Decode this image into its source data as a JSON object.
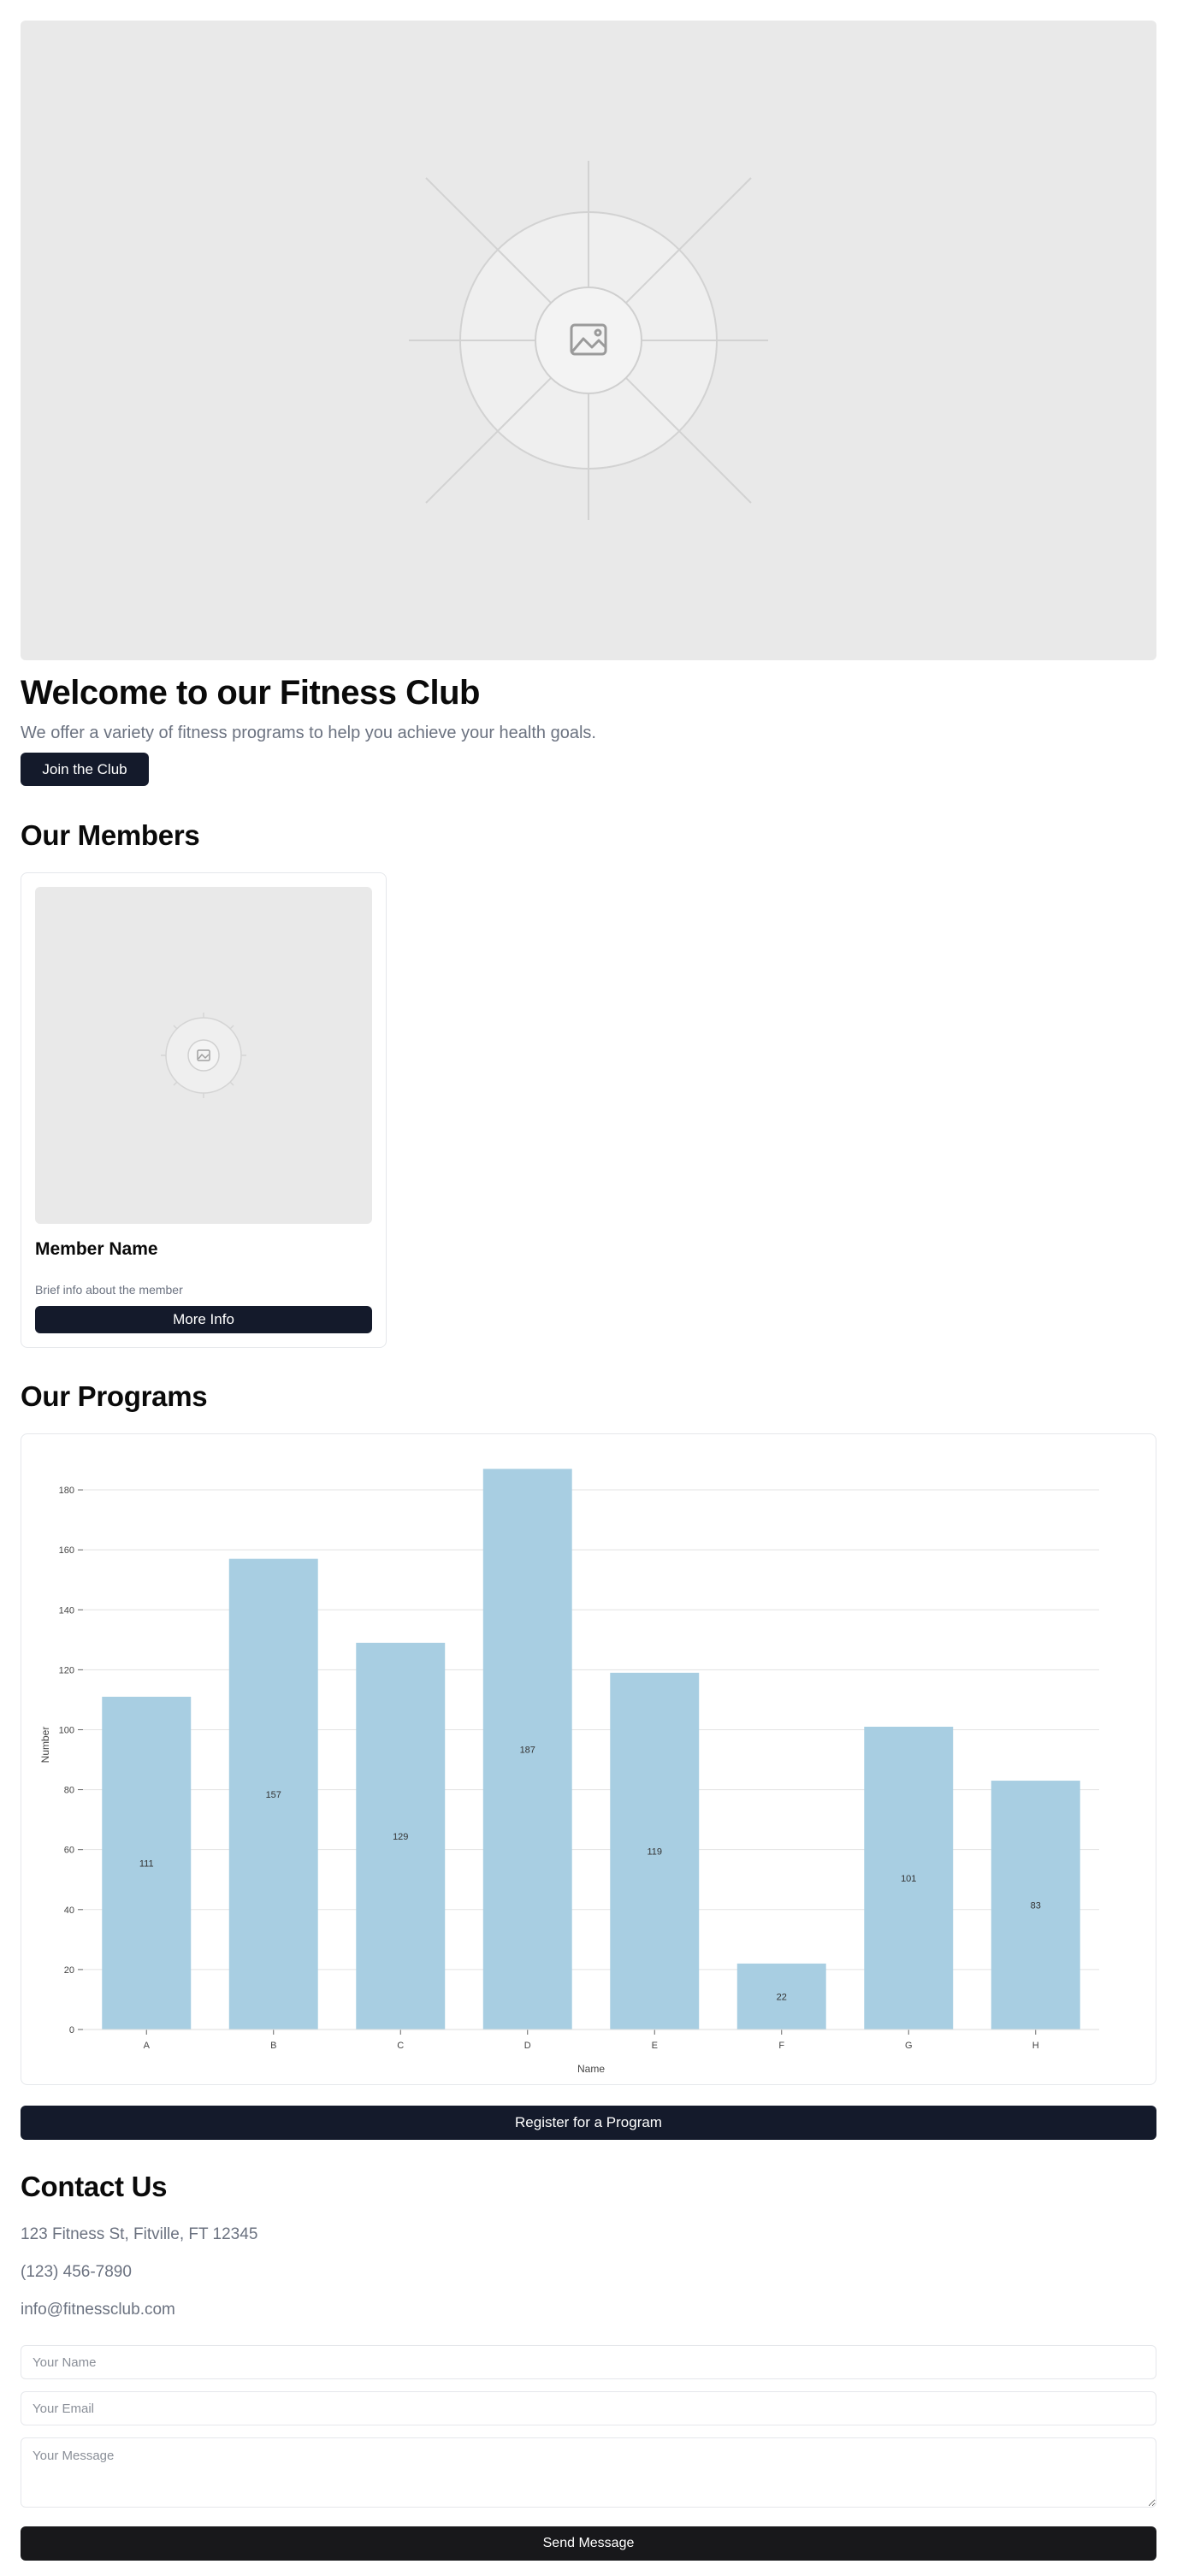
{
  "hero": {
    "image_icon": "image-placeholder-icon",
    "title": "Welcome to our Fitness Club",
    "subtitle": "We offer a variety of fitness programs to help you achieve your health goals.",
    "cta_label": "Join the Club"
  },
  "members": {
    "heading": "Our Members",
    "cards": [
      {
        "image_icon": "image-placeholder-icon",
        "name": "Member Name",
        "info": "Brief info about the member",
        "button_label": "More Info"
      }
    ]
  },
  "programs": {
    "heading": "Our Programs",
    "register_label": "Register for a Program"
  },
  "chart_data": {
    "type": "bar",
    "categories": [
      "A",
      "B",
      "C",
      "D",
      "E",
      "F",
      "G",
      "H"
    ],
    "values": [
      111,
      157,
      129,
      187,
      119,
      22,
      101,
      83
    ],
    "xlabel": "Name",
    "ylabel": "Number",
    "ylim": [
      0,
      190
    ],
    "yticks": [
      0,
      20,
      40,
      60,
      80,
      100,
      120,
      140,
      160,
      180
    ],
    "grid": true,
    "data_labels": true,
    "bar_color": "#a8cee2"
  },
  "contact": {
    "heading": "Contact Us",
    "address": "123 Fitness St, Fitville, FT 12345",
    "phone": "(123) 456-7890",
    "email": "info@fitnessclub.com",
    "form": {
      "name_placeholder": "Your Name",
      "email_placeholder": "Your Email",
      "message_placeholder": "Your Message",
      "submit_label": "Send Message"
    }
  },
  "colors": {
    "primary_button": "#141a2b",
    "send_button": "#18181b",
    "muted_text": "#6b7280",
    "border": "#e5e7eb",
    "placeholder_bg": "#e9e9e9"
  }
}
